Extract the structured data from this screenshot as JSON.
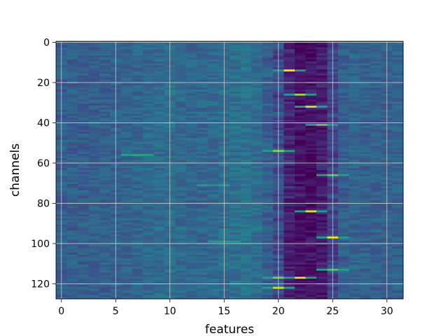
{
  "chart_data": {
    "type": "heatmap",
    "title": "",
    "xlabel": "features",
    "ylabel": "channels",
    "n_columns": 32,
    "n_rows": 128,
    "xlim": [
      -0.5,
      31.5
    ],
    "ylim": [
      127.5,
      -0.5
    ],
    "xticks": [
      0,
      5,
      10,
      15,
      20,
      25,
      30
    ],
    "yticks": [
      0,
      20,
      40,
      60,
      80,
      100,
      120
    ],
    "grid": true,
    "colormap": "viridis",
    "column_profile": [
      0.3,
      0.3,
      0.3,
      0.3,
      0.31,
      0.31,
      0.32,
      0.33,
      0.34,
      0.35,
      0.36,
      0.34,
      0.33,
      0.33,
      0.34,
      0.36,
      0.37,
      0.38,
      0.36,
      0.3,
      0.28,
      0.16,
      0.1,
      0.1,
      0.14,
      0.22,
      0.3,
      0.32,
      0.31,
      0.31,
      0.31,
      0.31
    ],
    "hotspots": [
      {
        "feature": 21,
        "channel": 14,
        "value": 0.98
      },
      {
        "feature": 22,
        "channel": 26,
        "value": 0.85
      },
      {
        "feature": 23,
        "channel": 32,
        "value": 0.92
      },
      {
        "feature": 24,
        "channel": 41,
        "value": 0.75
      },
      {
        "feature": 20,
        "channel": 54,
        "value": 0.8
      },
      {
        "feature": 25,
        "channel": 66,
        "value": 0.75
      },
      {
        "feature": 23,
        "channel": 84,
        "value": 0.95
      },
      {
        "feature": 25,
        "channel": 97,
        "value": 0.98
      },
      {
        "feature": 25,
        "channel": 113,
        "value": 0.72
      },
      {
        "feature": 22,
        "channel": 117,
        "value": 0.95
      },
      {
        "feature": 20,
        "channel": 117,
        "value": 0.8
      },
      {
        "feature": 20,
        "channel": 122,
        "value": 0.9
      },
      {
        "feature": 7,
        "channel": 56,
        "value": 0.6
      },
      {
        "feature": 15,
        "channel": 99,
        "value": 0.55
      },
      {
        "feature": 14,
        "channel": 71,
        "value": 0.5
      }
    ]
  }
}
